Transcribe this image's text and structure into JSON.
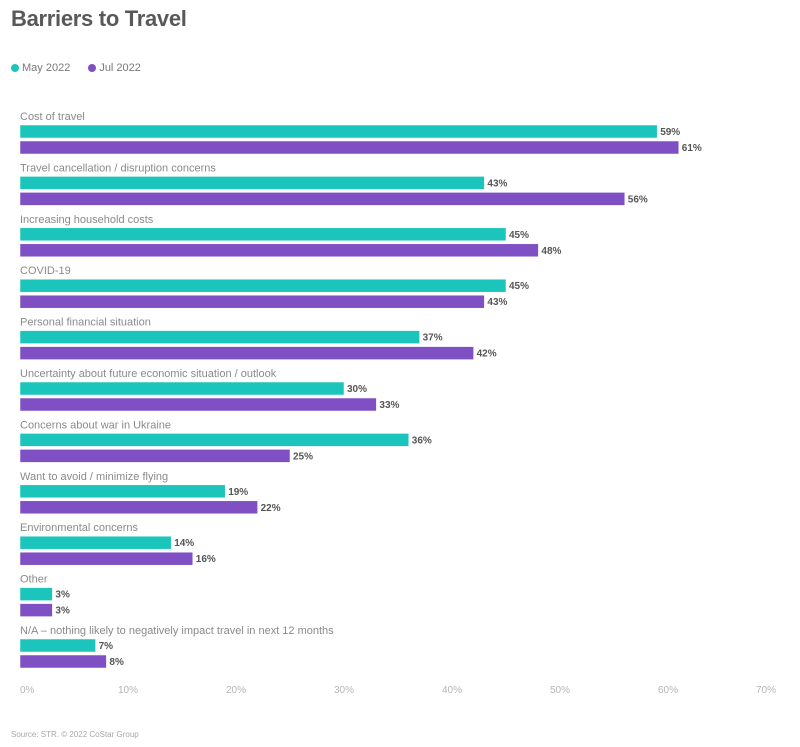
{
  "chart_data": {
    "type": "bar",
    "orientation": "horizontal",
    "title": "Barriers to Travel",
    "categories": [
      "Cost of travel",
      "Travel cancellation / disruption concerns",
      "Increasing household costs",
      "COVID-19",
      "Personal financial situation",
      "Uncertainty about future economic situation / outlook",
      "Concerns about war in Ukraine",
      "Want to avoid / minimize flying",
      "Environmental concerns",
      "Other",
      "N/A – nothing likely to negatively impact travel in next 12 months"
    ],
    "series": [
      {
        "name": "May 2022",
        "color": "#1cc5bb",
        "values": [
          59,
          43,
          45,
          45,
          37,
          30,
          36,
          19,
          14,
          3,
          7
        ]
      },
      {
        "name": "Jul 2022",
        "color": "#7f4fc4",
        "values": [
          61,
          56,
          48,
          43,
          42,
          33,
          25,
          22,
          16,
          3,
          8
        ]
      }
    ],
    "xlabel": "",
    "ylabel": "",
    "xlim": [
      0,
      70
    ],
    "xticks": [
      "0%",
      "10%",
      "20%",
      "30%",
      "40%",
      "50%",
      "60%",
      "70%"
    ],
    "value_suffix": "%",
    "grid": false,
    "legend_position": "top-left",
    "source": "Source: STR. © 2022 CoStar Group"
  }
}
